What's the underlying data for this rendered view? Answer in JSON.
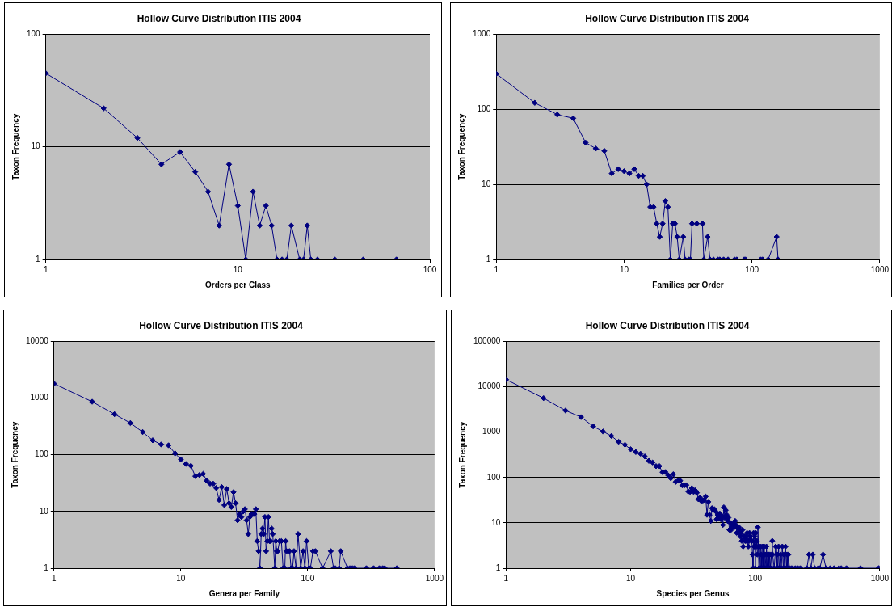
{
  "chart_data": [
    {
      "type": "line",
      "title": "Hollow Curve Distribution ITIS 2004",
      "xlabel": "Orders per Class",
      "ylabel": "Taxon Frequency",
      "color": "#000080",
      "marker": "diamond",
      "line_style": "solid",
      "grid": "y",
      "log": "xy",
      "legend": false,
      "xlim": [
        1,
        100
      ],
      "ylim": [
        1,
        100
      ],
      "xticks": [
        1,
        10,
        100
      ],
      "yticks": [
        1,
        10,
        100
      ],
      "x": [
        1,
        2,
        3,
        4,
        5,
        6,
        7,
        8,
        9,
        10,
        11,
        12,
        13,
        14,
        15,
        16,
        17,
        18,
        19,
        21,
        22,
        23,
        24,
        26,
        32,
        45,
        67
      ],
      "values": [
        45,
        22,
        12,
        7,
        9,
        6,
        4,
        2,
        7,
        3,
        1,
        4,
        2,
        3,
        2,
        1,
        1,
        1,
        2,
        1,
        1,
        2,
        1,
        1,
        1,
        1,
        1
      ]
    },
    {
      "type": "line",
      "title": "Hollow Curve Distribution ITIS 2004",
      "xlabel": "Families per Order",
      "ylabel": "Taxon Frequency",
      "color": "#000080",
      "marker": "diamond",
      "line_style": "solid",
      "grid": "y",
      "log": "xy",
      "legend": false,
      "xlim": [
        1,
        1000
      ],
      "ylim": [
        1,
        1000
      ],
      "xticks": [
        1,
        10,
        100,
        1000
      ],
      "yticks": [
        1,
        10,
        100,
        1000
      ],
      "x": [
        1,
        2,
        3,
        4,
        5,
        6,
        7,
        8,
        9,
        10,
        11,
        12,
        13,
        14,
        15,
        16,
        17,
        18,
        19,
        20,
        21,
        22,
        23,
        24,
        25,
        26,
        27,
        29,
        30,
        32,
        33,
        34,
        37,
        41,
        42,
        45,
        47,
        50,
        54,
        56,
        60,
        65,
        73,
        76,
        87,
        89,
        117,
        121,
        134,
        156,
        160
      ],
      "values": [
        297,
        122,
        85,
        76,
        36,
        30,
        28,
        14,
        16,
        15,
        14,
        16,
        13,
        13,
        10,
        5,
        5,
        3,
        2,
        3,
        6,
        5,
        1,
        3,
        3,
        2,
        1,
        2,
        1,
        1,
        1,
        3,
        3,
        3,
        1,
        2,
        1,
        1,
        1,
        1,
        1,
        1,
        1,
        1,
        1,
        1,
        1,
        1,
        1,
        2,
        1
      ]
    },
    {
      "type": "line",
      "title": "Hollow Curve Distribution ITIS 2004",
      "xlabel": "Genera per Family",
      "ylabel": "Taxon Frequency",
      "color": "#000080",
      "marker": "diamond",
      "line_style": "solid",
      "grid": "y",
      "log": "xy",
      "legend": false,
      "xlim": [
        1,
        1000
      ],
      "ylim": [
        1,
        10000
      ],
      "xticks": [
        1,
        10,
        100,
        1000
      ],
      "yticks": [
        1,
        10,
        100,
        1000,
        10000
      ],
      "x": [
        1,
        2,
        3,
        4,
        5,
        6,
        7,
        8,
        9,
        10,
        11,
        12,
        13,
        14,
        15,
        16,
        17,
        18,
        19,
        20,
        21,
        22,
        23,
        24,
        25,
        26,
        27,
        28,
        29,
        30,
        31,
        32,
        33,
        34,
        35,
        36,
        37,
        38,
        39,
        40,
        41,
        42,
        43,
        44,
        45,
        46,
        47,
        48,
        49,
        50,
        51,
        52,
        53,
        55,
        56,
        57,
        58,
        60,
        62,
        64,
        66,
        67,
        68,
        70,
        72,
        74,
        76,
        78,
        81,
        84,
        88,
        92,
        95,
        98,
        102,
        105,
        110,
        115,
        131,
        152,
        160,
        165,
        177,
        182,
        206,
        215,
        225,
        233,
        290,
        331,
        367,
        390,
        405,
        504
      ],
      "values": [
        1800,
        863,
        520,
        363,
        252,
        180,
        152,
        147,
        106,
        83,
        69,
        64,
        42,
        44,
        46,
        35,
        31,
        31,
        26,
        16,
        27,
        13,
        25,
        14,
        12,
        22,
        14,
        7,
        9,
        8,
        10,
        11,
        7,
        4,
        8,
        9,
        9,
        9,
        11,
        3,
        2,
        1,
        4,
        5,
        4,
        8,
        2,
        3,
        8,
        3,
        3,
        5,
        4,
        1,
        3,
        2,
        2,
        3,
        3,
        1,
        1,
        3,
        2,
        2,
        2,
        1,
        1,
        2,
        1,
        4,
        1,
        2,
        1,
        3,
        1,
        1,
        2,
        2,
        1,
        2,
        1,
        1,
        1,
        2,
        1,
        1,
        1,
        1,
        1,
        1,
        1,
        1,
        1,
        1
      ]
    },
    {
      "type": "line",
      "title": "Hollow Curve Distribution ITIS 2004",
      "xlabel": "Species per Genus",
      "ylabel": "Taxon Frequency",
      "color": "#000080",
      "marker": "diamond",
      "line_style": "solid",
      "grid": "y",
      "log": "xy",
      "legend": false,
      "xlim": [
        1,
        1000
      ],
      "ylim": [
        1,
        100000
      ],
      "xticks": [
        1,
        10,
        100,
        1000
      ],
      "yticks": [
        1,
        10,
        100,
        1000,
        10000,
        100000
      ],
      "x": [
        1,
        2,
        3,
        4,
        5,
        6,
        7,
        8,
        9,
        10,
        11,
        12,
        13,
        14,
        15,
        16,
        17,
        18,
        19,
        20,
        21,
        22,
        23,
        24,
        25,
        26,
        27,
        28,
        29,
        30,
        31,
        32,
        33,
        34,
        35,
        36,
        37,
        38,
        39,
        40,
        41,
        42,
        43,
        44,
        45,
        46,
        47,
        48,
        49,
        50,
        51,
        52,
        53,
        54,
        55,
        56,
        57,
        58,
        59,
        60,
        61,
        62,
        63,
        64,
        65,
        66,
        67,
        68,
        69,
        70,
        71,
        72,
        73,
        74,
        75,
        76,
        77,
        78,
        79,
        80,
        81,
        82,
        83,
        84,
        85,
        86,
        87,
        88,
        89,
        90,
        91,
        92,
        93,
        94,
        95,
        96,
        97,
        98,
        99,
        100,
        101,
        102,
        103,
        104,
        105,
        106,
        107,
        108,
        110,
        111,
        112,
        113,
        115,
        116,
        117,
        118,
        119,
        120,
        122,
        123,
        125,
        126,
        128,
        129,
        130,
        132,
        134,
        136,
        137,
        138,
        142,
        146,
        148,
        150,
        152,
        154,
        156,
        160,
        162,
        165,
        168,
        170,
        172,
        175,
        178,
        180,
        182,
        185,
        188,
        195,
        200,
        210,
        220,
        230,
        260,
        270,
        280,
        290,
        300,
        320,
        330,
        350,
        370,
        400,
        430,
        470,
        490,
        540,
        700,
        980
      ],
      "values": [
        14400,
        5600,
        2990,
        2140,
        1340,
        1030,
        822,
        612,
        525,
        419,
        364,
        334,
        290,
        232,
        214,
        178,
        178,
        131,
        132,
        112,
        96,
        118,
        80,
        85,
        85,
        67,
        67,
        68,
        49,
        48,
        58,
        48,
        52,
        46,
        33,
        36,
        30,
        31,
        32,
        38,
        15,
        29,
        15,
        11,
        21,
        19,
        20,
        18,
        12,
        15,
        13,
        16,
        12,
        14,
        9,
        22,
        13,
        19,
        15,
        11,
        13,
        7,
        10,
        7,
        8,
        9,
        10,
        8,
        11,
        9,
        6,
        8,
        6,
        8,
        7,
        5,
        6,
        4,
        7,
        3,
        5,
        5,
        4,
        4,
        5,
        6,
        4,
        3,
        4,
        6,
        5,
        5,
        4,
        4,
        2,
        1,
        6,
        3,
        5,
        1,
        6,
        3,
        4,
        2,
        8,
        3,
        1,
        3,
        1,
        3,
        2,
        1,
        3,
        1,
        2,
        3,
        1,
        2,
        1,
        3,
        1,
        2,
        2,
        1,
        2,
        1,
        2,
        1,
        4,
        2,
        1,
        3,
        1,
        2,
        1,
        3,
        1,
        2,
        1,
        3,
        1,
        2,
        1,
        3,
        1,
        2,
        1,
        2,
        1,
        1,
        1,
        1,
        1,
        1,
        1,
        2,
        1,
        2,
        1,
        1,
        1,
        2,
        1,
        1,
        1,
        1,
        1,
        1,
        1,
        1
      ]
    }
  ]
}
